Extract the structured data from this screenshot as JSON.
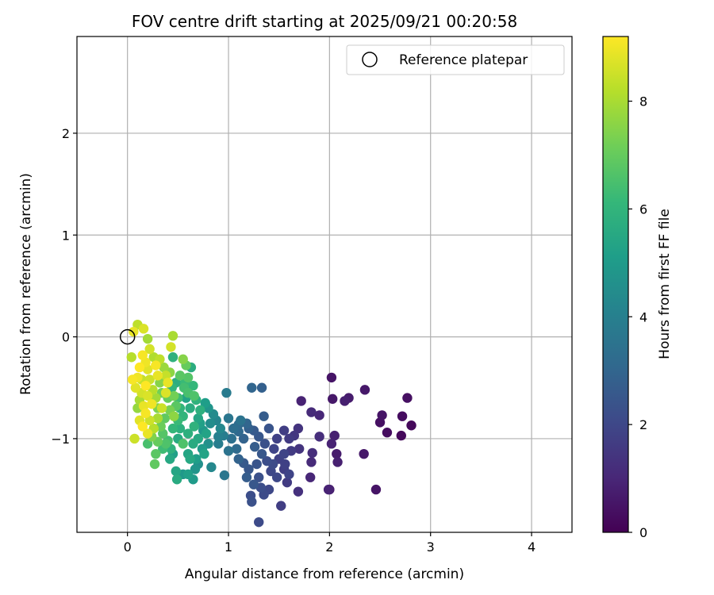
{
  "chart_data": {
    "type": "scatter",
    "title": "FOV centre drift starting at 2025/09/21 00:20:58",
    "xlabel": "Angular distance from reference (arcmin)",
    "ylabel": "Rotation from reference (arcmin)",
    "xlim": [
      -0.5,
      4.4
    ],
    "ylim": [
      -1.92,
      2.95
    ],
    "xticks": [
      0,
      1,
      2,
      3,
      4
    ],
    "yticks": [
      -1,
      0,
      1,
      2
    ],
    "xtick_labels": [
      "0",
      "1",
      "2",
      "3",
      "4"
    ],
    "ytick_labels": [
      "−1",
      "0",
      "1",
      "2"
    ],
    "grid": true,
    "legend": {
      "position": "top-right",
      "label": "Reference platepar"
    },
    "reference_point": {
      "x": 0,
      "y": 0
    },
    "colorbar": {
      "label": "Hours from first FF file",
      "min": 0,
      "max": 9.2,
      "ticks": [
        0,
        2,
        4,
        6,
        8
      ],
      "tick_labels": [
        "0",
        "2",
        "4",
        "6",
        "8"
      ],
      "colormap": "viridis",
      "colormap_stops": [
        "#440154",
        "#482878",
        "#3e4989",
        "#31688e",
        "#26828e",
        "#1f9e89",
        "#35b779",
        "#6ece58",
        "#b5de2b",
        "#fde725"
      ]
    },
    "points": [
      {
        "x": 2.02,
        "y": -0.4,
        "c": 0.5
      },
      {
        "x": 2.35,
        "y": -0.52,
        "c": 0.6
      },
      {
        "x": 2.77,
        "y": -0.6,
        "c": 0.4
      },
      {
        "x": 2.19,
        "y": -0.6,
        "c": 0.7
      },
      {
        "x": 2.15,
        "y": -0.63,
        "c": 0.8
      },
      {
        "x": 2.03,
        "y": -0.61,
        "c": 0.6
      },
      {
        "x": 1.72,
        "y": -0.63,
        "c": 0.9
      },
      {
        "x": 2.52,
        "y": -0.77,
        "c": 0.5
      },
      {
        "x": 2.72,
        "y": -0.78,
        "c": 0.3
      },
      {
        "x": 2.5,
        "y": -0.84,
        "c": 0.4
      },
      {
        "x": 2.81,
        "y": -0.87,
        "c": 0.2
      },
      {
        "x": 2.57,
        "y": -0.94,
        "c": 0.3
      },
      {
        "x": 2.71,
        "y": -0.97,
        "c": 0.2
      },
      {
        "x": 1.82,
        "y": -0.74,
        "c": 1.1
      },
      {
        "x": 1.9,
        "y": -0.77,
        "c": 1.0
      },
      {
        "x": 2.05,
        "y": -0.97,
        "c": 0.8
      },
      {
        "x": 2.02,
        "y": -1.05,
        "c": 0.9
      },
      {
        "x": 2.07,
        "y": -1.15,
        "c": 0.7
      },
      {
        "x": 2.08,
        "y": -1.23,
        "c": 0.8
      },
      {
        "x": 2.34,
        "y": -1.15,
        "c": 0.6
      },
      {
        "x": 1.9,
        "y": -0.98,
        "c": 1.2
      },
      {
        "x": 1.82,
        "y": -1.23,
        "c": 1.1
      },
      {
        "x": 1.83,
        "y": -1.14,
        "c": 1.2
      },
      {
        "x": 1.81,
        "y": -1.38,
        "c": 1.0
      },
      {
        "x": 2.0,
        "y": -1.5,
        "c": 0.7
      },
      {
        "x": 1.99,
        "y": -1.5,
        "c": 0.9
      },
      {
        "x": 2.46,
        "y": -1.5,
        "c": 0.5
      },
      {
        "x": 1.69,
        "y": -1.52,
        "c": 1.3
      },
      {
        "x": 1.69,
        "y": -0.9,
        "c": 1.4
      },
      {
        "x": 1.65,
        "y": -0.97,
        "c": 1.5
      },
      {
        "x": 1.7,
        "y": -1.1,
        "c": 1.4
      },
      {
        "x": 1.6,
        "y": -1.0,
        "c": 1.6
      },
      {
        "x": 1.55,
        "y": -0.92,
        "c": 1.7
      },
      {
        "x": 1.48,
        "y": -1.0,
        "c": 1.8
      },
      {
        "x": 1.45,
        "y": -1.1,
        "c": 1.9
      },
      {
        "x": 1.5,
        "y": -1.2,
        "c": 1.8
      },
      {
        "x": 1.55,
        "y": -1.3,
        "c": 1.7
      },
      {
        "x": 1.58,
        "y": -1.43,
        "c": 1.6
      },
      {
        "x": 1.55,
        "y": -1.15,
        "c": 1.9
      },
      {
        "x": 1.62,
        "y": -1.12,
        "c": 1.6
      },
      {
        "x": 1.4,
        "y": -1.5,
        "c": 2.0
      },
      {
        "x": 1.52,
        "y": -1.66,
        "c": 1.7
      },
      {
        "x": 1.3,
        "y": -1.82,
        "c": 2.1
      },
      {
        "x": 1.22,
        "y": -1.56,
        "c": 2.2
      },
      {
        "x": 1.23,
        "y": -1.62,
        "c": 2.3
      },
      {
        "x": 1.32,
        "y": -1.48,
        "c": 2.2
      },
      {
        "x": 1.35,
        "y": -1.55,
        "c": 2.1
      },
      {
        "x": 1.3,
        "y": -1.38,
        "c": 2.3
      },
      {
        "x": 1.28,
        "y": -1.25,
        "c": 2.4
      },
      {
        "x": 1.2,
        "y": -1.3,
        "c": 2.5
      },
      {
        "x": 1.15,
        "y": -1.24,
        "c": 2.6
      },
      {
        "x": 1.38,
        "y": -1.22,
        "c": 2.2
      },
      {
        "x": 1.42,
        "y": -1.32,
        "c": 2.0
      },
      {
        "x": 1.3,
        "y": -0.98,
        "c": 2.5
      },
      {
        "x": 1.35,
        "y": -0.78,
        "c": 2.7
      },
      {
        "x": 1.33,
        "y": -0.5,
        "c": 2.8
      },
      {
        "x": 1.23,
        "y": -0.5,
        "c": 3.0
      },
      {
        "x": 1.4,
        "y": -0.9,
        "c": 2.4
      },
      {
        "x": 1.2,
        "y": -0.9,
        "c": 2.8
      },
      {
        "x": 1.18,
        "y": -0.85,
        "c": 3.0
      },
      {
        "x": 1.1,
        "y": -0.86,
        "c": 3.2
      },
      {
        "x": 1.15,
        "y": -1.0,
        "c": 2.9
      },
      {
        "x": 1.1,
        "y": -0.93,
        "c": 3.1
      },
      {
        "x": 1.05,
        "y": -0.9,
        "c": 3.3
      },
      {
        "x": 1.0,
        "y": -0.8,
        "c": 3.6
      },
      {
        "x": 1.03,
        "y": -1.0,
        "c": 3.4
      },
      {
        "x": 1.08,
        "y": -1.1,
        "c": 3.2
      },
      {
        "x": 0.98,
        "y": -0.55,
        "c": 3.8
      },
      {
        "x": 0.96,
        "y": -1.36,
        "c": 3.6
      },
      {
        "x": 1.0,
        "y": -1.12,
        "c": 3.5
      },
      {
        "x": 1.1,
        "y": -1.2,
        "c": 2.9
      },
      {
        "x": 0.95,
        "y": -0.97,
        "c": 3.9
      },
      {
        "x": 0.88,
        "y": -0.82,
        "c": 4.2
      },
      {
        "x": 0.9,
        "y": -0.98,
        "c": 4.0
      },
      {
        "x": 0.85,
        "y": -0.76,
        "c": 4.4
      },
      {
        "x": 0.82,
        "y": -0.85,
        "c": 4.5
      },
      {
        "x": 0.8,
        "y": -0.7,
        "c": 4.8
      },
      {
        "x": 0.77,
        "y": -0.65,
        "c": 5.1
      },
      {
        "x": 0.75,
        "y": -0.92,
        "c": 4.9
      },
      {
        "x": 0.72,
        "y": -0.85,
        "c": 5.2
      },
      {
        "x": 0.8,
        "y": -1.05,
        "c": 4.6
      },
      {
        "x": 0.83,
        "y": -1.28,
        "c": 4.3
      },
      {
        "x": 0.7,
        "y": -1.25,
        "c": 4.6
      },
      {
        "x": 0.74,
        "y": -1.1,
        "c": 5.0
      },
      {
        "x": 0.76,
        "y": -1.15,
        "c": 5.3
      },
      {
        "x": 0.67,
        "y": -1.3,
        "c": 4.8
      },
      {
        "x": 0.65,
        "y": -1.4,
        "c": 5.0
      },
      {
        "x": 0.6,
        "y": -1.35,
        "c": 5.2
      },
      {
        "x": 0.55,
        "y": -1.35,
        "c": 4.9
      },
      {
        "x": 0.48,
        "y": -1.32,
        "c": 5.4
      },
      {
        "x": 0.49,
        "y": -1.4,
        "c": 5.6
      },
      {
        "x": 0.62,
        "y": -1.2,
        "c": 5.5
      },
      {
        "x": 0.65,
        "y": -1.05,
        "c": 5.6
      },
      {
        "x": 0.6,
        "y": -0.95,
        "c": 5.8
      },
      {
        "x": 0.66,
        "y": -0.88,
        "c": 5.9
      },
      {
        "x": 0.62,
        "y": -0.7,
        "c": 5.7
      },
      {
        "x": 0.58,
        "y": -0.6,
        "c": 5.3
      },
      {
        "x": 0.63,
        "y": -0.3,
        "c": 5.7
      },
      {
        "x": 0.57,
        "y": -0.45,
        "c": 6.2
      },
      {
        "x": 0.55,
        "y": -0.78,
        "c": 6.0
      },
      {
        "x": 0.52,
        "y": -0.9,
        "c": 5.8
      },
      {
        "x": 0.5,
        "y": -1.0,
        "c": 5.6
      },
      {
        "x": 0.45,
        "y": -0.9,
        "c": 6.1
      },
      {
        "x": 0.42,
        "y": -1.2,
        "c": 5.5
      },
      {
        "x": 0.43,
        "y": -1.1,
        "c": 5.9
      },
      {
        "x": 0.4,
        "y": -1.02,
        "c": 6.4
      },
      {
        "x": 0.38,
        "y": -1.05,
        "c": 6.6
      },
      {
        "x": 0.45,
        "y": -0.2,
        "c": 5.9
      },
      {
        "x": 0.44,
        "y": -0.5,
        "c": 6.0
      },
      {
        "x": 0.48,
        "y": -0.45,
        "c": 5.7
      },
      {
        "x": 0.5,
        "y": -0.6,
        "c": 6.3
      },
      {
        "x": 0.52,
        "y": -0.7,
        "c": 6.0
      },
      {
        "x": 0.35,
        "y": -0.95,
        "c": 6.7
      },
      {
        "x": 0.3,
        "y": -1.03,
        "c": 7.0
      },
      {
        "x": 0.28,
        "y": -1.15,
        "c": 6.8
      },
      {
        "x": 0.27,
        "y": -1.25,
        "c": 6.9
      },
      {
        "x": 0.2,
        "y": -1.05,
        "c": 6.5
      },
      {
        "x": 0.07,
        "y": -1.0,
        "c": 8.5
      },
      {
        "x": 0.45,
        "y": 0.01,
        "c": 8.0
      },
      {
        "x": 0.55,
        "y": -0.22,
        "c": 7.5
      },
      {
        "x": 0.52,
        "y": -0.38,
        "c": 6.8
      },
      {
        "x": 0.6,
        "y": -0.55,
        "c": 6.5
      },
      {
        "x": 0.66,
        "y": -0.58,
        "c": 6.6
      },
      {
        "x": 0.43,
        "y": -0.1,
        "c": 8.6
      },
      {
        "x": 0.36,
        "y": -0.3,
        "c": 7.8
      },
      {
        "x": 0.38,
        "y": -0.38,
        "c": 8.4
      },
      {
        "x": 0.32,
        "y": -0.45,
        "c": 7.5
      },
      {
        "x": 0.34,
        "y": -0.55,
        "c": 7.2
      },
      {
        "x": 0.4,
        "y": -0.6,
        "c": 7.0
      },
      {
        "x": 0.42,
        "y": -0.72,
        "c": 7.3
      },
      {
        "x": 0.46,
        "y": -0.78,
        "c": 7.6
      },
      {
        "x": 0.37,
        "y": -0.8,
        "c": 6.9
      },
      {
        "x": 0.33,
        "y": -0.88,
        "c": 7.1
      },
      {
        "x": 0.3,
        "y": -0.7,
        "c": 7.4
      },
      {
        "x": 0.28,
        "y": -0.6,
        "c": 7.9
      },
      {
        "x": 0.25,
        "y": -0.52,
        "c": 8.2
      },
      {
        "x": 0.22,
        "y": -0.42,
        "c": 8.5
      },
      {
        "x": 0.2,
        "y": -0.32,
        "c": 8.8
      },
      {
        "x": 0.18,
        "y": -0.25,
        "c": 9.0
      },
      {
        "x": 0.15,
        "y": -0.18,
        "c": 9.1
      },
      {
        "x": 0.12,
        "y": -0.3,
        "c": 9.2
      },
      {
        "x": 0.1,
        "y": -0.4,
        "c": 9.0
      },
      {
        "x": 0.08,
        "y": -0.5,
        "c": 8.8
      },
      {
        "x": 0.05,
        "y": -0.42,
        "c": 9.1
      },
      {
        "x": 0.04,
        "y": -0.2,
        "c": 8.2
      },
      {
        "x": 0.06,
        "y": 0.05,
        "c": 8.9
      },
      {
        "x": 0.1,
        "y": 0.12,
        "c": 8.3
      },
      {
        "x": 0.16,
        "y": 0.08,
        "c": 8.7
      },
      {
        "x": 0.2,
        "y": -0.02,
        "c": 7.9
      },
      {
        "x": 0.22,
        "y": -0.12,
        "c": 8.6
      },
      {
        "x": 0.26,
        "y": -0.2,
        "c": 8.1
      },
      {
        "x": 0.28,
        "y": -0.28,
        "c": 9.1
      },
      {
        "x": 0.3,
        "y": -0.38,
        "c": 8.9
      },
      {
        "x": 0.32,
        "y": -0.22,
        "c": 8.3
      },
      {
        "x": 0.14,
        "y": -0.55,
        "c": 8.6
      },
      {
        "x": 0.12,
        "y": -0.62,
        "c": 8.0
      },
      {
        "x": 0.16,
        "y": -0.68,
        "c": 8.9
      },
      {
        "x": 0.18,
        "y": -0.75,
        "c": 9.1
      },
      {
        "x": 0.22,
        "y": -0.82,
        "c": 8.5
      },
      {
        "x": 0.24,
        "y": -0.66,
        "c": 9.0
      },
      {
        "x": 0.2,
        "y": -0.58,
        "c": 8.7
      },
      {
        "x": 0.18,
        "y": -0.48,
        "c": 9.2
      },
      {
        "x": 0.14,
        "y": -0.42,
        "c": 8.4
      },
      {
        "x": 0.12,
        "y": -0.82,
        "c": 8.8
      },
      {
        "x": 0.1,
        "y": -0.7,
        "c": 7.7
      },
      {
        "x": 0.26,
        "y": -0.9,
        "c": 8.2
      },
      {
        "x": 0.3,
        "y": -0.8,
        "c": 8.0
      },
      {
        "x": 0.34,
        "y": -0.7,
        "c": 8.5
      },
      {
        "x": 0.38,
        "y": -0.55,
        "c": 8.7
      },
      {
        "x": 0.4,
        "y": -0.45,
        "c": 8.9
      },
      {
        "x": 0.42,
        "y": -0.35,
        "c": 7.6
      },
      {
        "x": 0.15,
        "y": -0.88,
        "c": 9.2
      },
      {
        "x": 0.2,
        "y": -0.95,
        "c": 8.9
      },
      {
        "x": 0.24,
        "y": -0.98,
        "c": 7.4
      },
      {
        "x": 0.35,
        "y": -1.1,
        "c": 6.3
      },
      {
        "x": 0.45,
        "y": -1.15,
        "c": 5.2
      },
      {
        "x": 0.55,
        "y": -1.05,
        "c": 6.6
      },
      {
        "x": 0.6,
        "y": -1.15,
        "c": 5.4
      },
      {
        "x": 0.68,
        "y": -1.2,
        "c": 5.1
      },
      {
        "x": 0.7,
        "y": -1.0,
        "c": 5.5
      },
      {
        "x": 0.72,
        "y": -0.72,
        "c": 5.8
      },
      {
        "x": 0.5,
        "y": -0.82,
        "c": 6.2
      },
      {
        "x": 0.48,
        "y": -0.68,
        "c": 6.8
      },
      {
        "x": 0.46,
        "y": -0.58,
        "c": 7.2
      },
      {
        "x": 0.56,
        "y": -0.5,
        "c": 6.4
      },
      {
        "x": 0.6,
        "y": -0.4,
        "c": 6.7
      },
      {
        "x": 0.65,
        "y": -0.48,
        "c": 6.1
      },
      {
        "x": 0.68,
        "y": -0.62,
        "c": 5.9
      },
      {
        "x": 0.58,
        "y": -0.28,
        "c": 7.0
      },
      {
        "x": 0.7,
        "y": -0.8,
        "c": 5.4
      },
      {
        "x": 0.78,
        "y": -0.95,
        "c": 5.3
      },
      {
        "x": 0.9,
        "y": -1.05,
        "c": 3.9
      },
      {
        "x": 0.92,
        "y": -0.9,
        "c": 4.3
      },
      {
        "x": 1.12,
        "y": -0.82,
        "c": 3.5
      },
      {
        "x": 1.25,
        "y": -0.92,
        "c": 2.6
      },
      {
        "x": 1.26,
        "y": -1.08,
        "c": 2.7
      },
      {
        "x": 1.36,
        "y": -1.05,
        "c": 2.3
      },
      {
        "x": 1.44,
        "y": -1.25,
        "c": 2.1
      },
      {
        "x": 1.48,
        "y": -1.38,
        "c": 2.0
      },
      {
        "x": 1.56,
        "y": -1.25,
        "c": 1.8
      },
      {
        "x": 1.6,
        "y": -1.35,
        "c": 1.9
      },
      {
        "x": 1.25,
        "y": -1.45,
        "c": 2.5
      },
      {
        "x": 1.18,
        "y": -1.38,
        "c": 2.7
      },
      {
        "x": 1.33,
        "y": -1.15,
        "c": 2.5
      }
    ]
  }
}
